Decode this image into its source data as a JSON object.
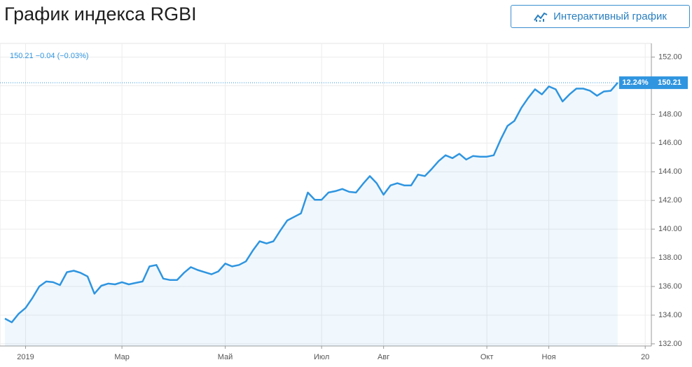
{
  "header": {
    "title": "График индекса RGBI",
    "button": "Интерактивный график"
  },
  "chart_data": {
    "type": "line",
    "quote": "150.21 −0.04 (−0.03%)",
    "change_badge": "12.24%",
    "last_badge": "150.21",
    "color": "#2f95e0",
    "categories": [
      null,
      null,
      null,
      "2019",
      null,
      null,
      null,
      null,
      null,
      null,
      null,
      null,
      null,
      null,
      null,
      null,
      null,
      "Мар",
      null,
      null,
      null,
      null,
      null,
      null,
      null,
      null,
      null,
      null,
      null,
      null,
      null,
      null,
      "Май",
      null,
      null,
      null,
      null,
      null,
      null,
      null,
      null,
      null,
      null,
      null,
      null,
      null,
      "Июл",
      null,
      null,
      null,
      null,
      null,
      null,
      null,
      null,
      "Авг",
      null,
      null,
      null,
      null,
      null,
      null,
      null,
      null,
      null,
      null,
      null,
      null,
      null,
      null,
      "Окт",
      null,
      null,
      null,
      null,
      null,
      null,
      null,
      null,
      "Ноя",
      null,
      null,
      null,
      null,
      null,
      null,
      null,
      null,
      null,
      null,
      null,
      null,
      null,
      "20"
    ],
    "series": [
      {
        "name": "RGBI",
        "color": "#2f95e0",
        "values": [
          133.76,
          133.5,
          134.1,
          134.5,
          135.2,
          136.0,
          136.35,
          136.3,
          136.1,
          137.0,
          137.1,
          136.95,
          136.7,
          135.5,
          136.05,
          136.2,
          136.15,
          136.3,
          136.15,
          136.25,
          136.35,
          137.4,
          137.5,
          136.55,
          136.45,
          136.45,
          136.95,
          137.35,
          137.15,
          137.0,
          136.85,
          137.05,
          137.6,
          137.4,
          137.5,
          137.75,
          138.5,
          139.15,
          139.0,
          139.15,
          139.9,
          140.6,
          140.85,
          141.1,
          142.55,
          142.05,
          142.05,
          142.55,
          142.65,
          142.8,
          142.6,
          142.55,
          143.15,
          143.7,
          143.2,
          142.4,
          143.05,
          143.2,
          143.05,
          143.05,
          143.8,
          143.7,
          144.2,
          144.75,
          145.15,
          144.95,
          145.25,
          144.85,
          145.1,
          145.05,
          145.05,
          145.15,
          146.25,
          147.2,
          147.55,
          148.45,
          149.15,
          149.75,
          149.4,
          149.95,
          149.75,
          148.9,
          149.4,
          149.8,
          149.8,
          149.65,
          149.3,
          149.6,
          149.65,
          150.21,
          null,
          null,
          null,
          null
        ]
      }
    ],
    "ylim": [
      131.85,
      152.95
    ],
    "yticks": [
      {
        "value": 132,
        "label": "132.00"
      },
      {
        "value": 134,
        "label": "134.00"
      },
      {
        "value": 136,
        "label": "136.00"
      },
      {
        "value": 138,
        "label": "138.00"
      },
      {
        "value": 140,
        "label": "140.00"
      },
      {
        "value": 142,
        "label": "142.00"
      },
      {
        "value": 144,
        "label": "144.00"
      },
      {
        "value": 146,
        "label": "146.00"
      },
      {
        "value": 148,
        "label": "148.00"
      },
      {
        "value": 150,
        "label": "150.00"
      },
      {
        "value": 152,
        "label": "152.00"
      }
    ],
    "grid": true
  }
}
